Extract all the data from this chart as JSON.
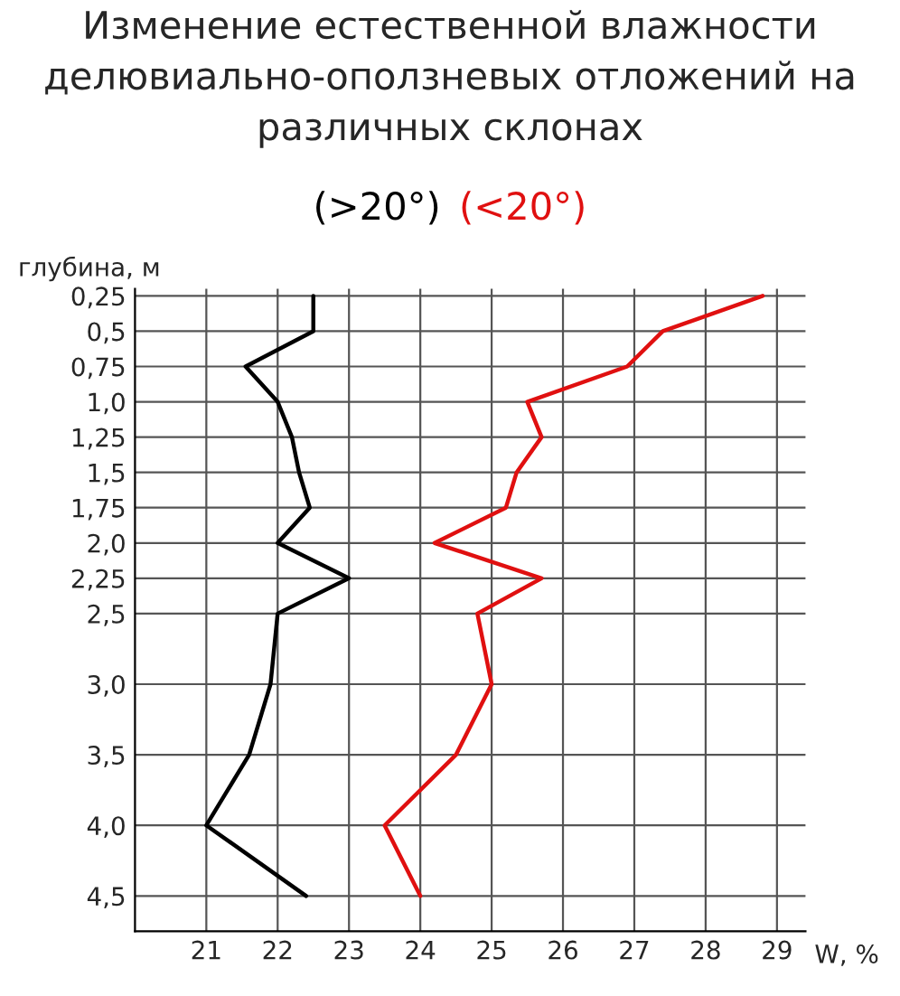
{
  "chart_data": {
    "type": "line",
    "title": "Изменение естественной влажности делювиально-оползневых отложений на различных склонах",
    "ylabel": "глубина, м",
    "xlabel": "W, %",
    "series": [
      {
        "name": "(>20°)",
        "color": "#000000",
        "x": [
          22.5,
          22.5,
          21.55,
          22.0,
          22.2,
          22.3,
          22.45,
          22.0,
          23.0,
          22.0,
          21.9,
          21.6,
          21.0,
          22.4
        ],
        "values": [
          0.25,
          0.5,
          0.75,
          1.0,
          1.25,
          1.5,
          1.75,
          2.0,
          2.25,
          2.5,
          3.0,
          3.5,
          4.0,
          4.5
        ]
      },
      {
        "name": "(<20°)",
        "color": "#e01010",
        "x": [
          28.8,
          27.4,
          26.9,
          25.5,
          25.7,
          25.35,
          25.2,
          24.2,
          25.7,
          24.8,
          25.0,
          24.5,
          23.5,
          24.0
        ],
        "values": [
          0.25,
          0.5,
          0.75,
          1.0,
          1.25,
          1.5,
          1.75,
          2.0,
          2.25,
          2.5,
          3.0,
          3.5,
          4.0,
          4.5
        ]
      }
    ],
    "xlim": [
      20,
      29.4
    ],
    "xticks": [
      21,
      22,
      23,
      24,
      25,
      26,
      27,
      28,
      29
    ],
    "ylim": [
      4.75,
      0.2
    ],
    "yticks": [
      {
        "value": 0.25,
        "label": "0,25"
      },
      {
        "value": 0.5,
        "label": "0,5"
      },
      {
        "value": 0.75,
        "label": "0,75"
      },
      {
        "value": 1.0,
        "label": "1,0"
      },
      {
        "value": 1.25,
        "label": "1,25"
      },
      {
        "value": 1.5,
        "label": "1,5"
      },
      {
        "value": 1.75,
        "label": "1,75"
      },
      {
        "value": 2.0,
        "label": "2,0"
      },
      {
        "value": 2.25,
        "label": "2,25"
      },
      {
        "value": 2.5,
        "label": "2,5"
      },
      {
        "value": 3.0,
        "label": "3,0"
      },
      {
        "value": 3.5,
        "label": "3,5"
      },
      {
        "value": 4.0,
        "label": "4,0"
      },
      {
        "value": 4.5,
        "label": "4,5"
      }
    ],
    "grid": true,
    "marker": "none",
    "line_style": "solid"
  }
}
